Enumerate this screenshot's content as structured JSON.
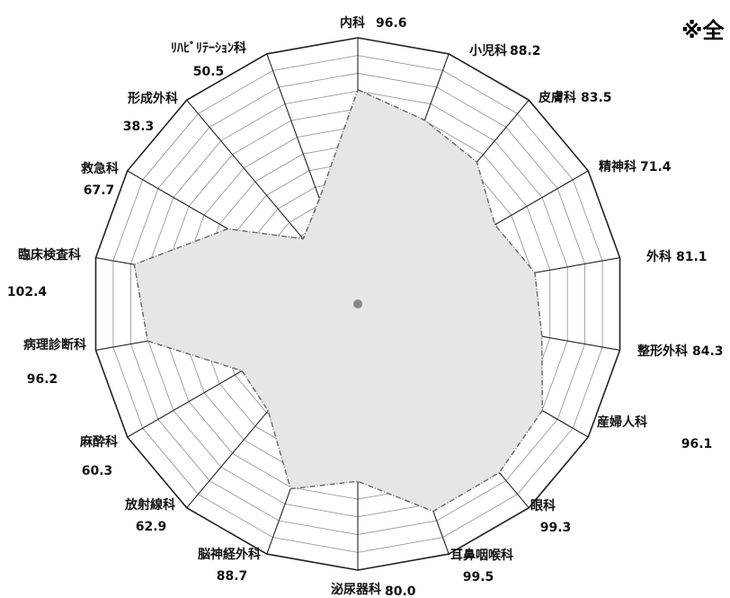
{
  "note": "※全",
  "chart_data": {
    "type": "radar",
    "title": "",
    "categories": [
      "内科",
      "小児科",
      "皮膚科",
      "精神科",
      "外科",
      "整形外科",
      "産婦人科",
      "眼科",
      "耳鼻咽喉科",
      "泌尿器科",
      "脳神経外科",
      "放射線科",
      "麻酔科",
      "病理診断科",
      "臨床検査科",
      "救急科",
      "形成外科",
      "ﾘﾊﾋﾞﾘﾃｰｼｮﾝ科"
    ],
    "values": [
      96.6,
      88.2,
      83.5,
      71.4,
      81.1,
      84.3,
      96.1,
      99.3,
      99.5,
      80.0,
      88.7,
      62.9,
      60.3,
      96.2,
      102.4,
      67.7,
      38.3,
      50.5
    ],
    "value_labels": [
      "96.6",
      "88.2",
      "83.5",
      "71.4",
      "81.1",
      "84.3",
      "96.1",
      "99.3",
      "99.5",
      "80.0",
      "88.7",
      "62.9",
      "60.3",
      "96.2",
      "102.4",
      "67.7",
      "38.3",
      "50.5"
    ],
    "rlim": [
      0,
      120
    ],
    "grid": true,
    "colors": {
      "fill": "#e6e6e6",
      "series_line": "#666666",
      "grid": "#999999",
      "outer": "#222222"
    }
  }
}
